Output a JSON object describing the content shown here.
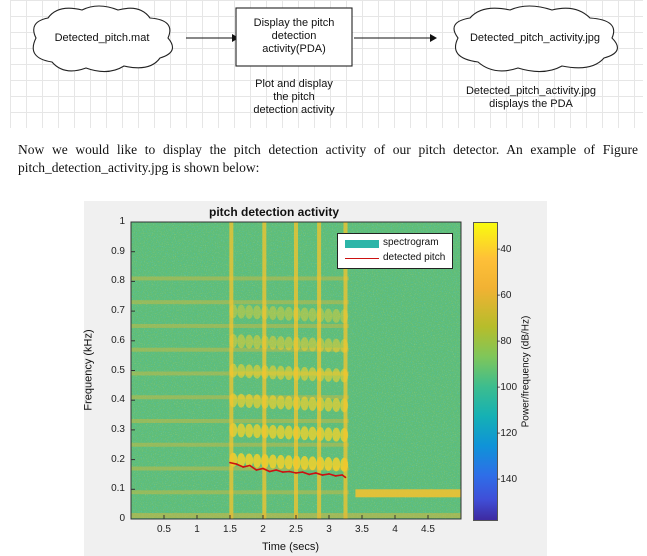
{
  "flowchart": {
    "input_cloud": "Detected_pitch.mat",
    "process_box": [
      "Display the pitch",
      "detection",
      "activity(PDA)"
    ],
    "process_caption": [
      "Plot and display",
      "the pitch",
      "detection activity"
    ],
    "output_cloud": "Detected_pitch_activity.jpg",
    "output_caption": [
      "Detected_pitch_activity.jpg",
      "displays the PDA"
    ]
  },
  "paragraph": "Now we would like to display the pitch detection activity of our pitch detector. An example of Figure pitch_detection_activity.jpg is shown below:",
  "chart_data": {
    "type": "heatmap",
    "title": "pitch detection activity",
    "xlabel": "Time (secs)",
    "ylabel": "Frequency (kHz)",
    "xlim": [
      0,
      5
    ],
    "ylim": [
      0,
      1
    ],
    "xticks": [
      0.5,
      1,
      1.5,
      2,
      2.5,
      3,
      3.5,
      4,
      4.5
    ],
    "yticks": [
      0,
      0.1,
      0.2,
      0.3,
      0.4,
      0.5,
      0.6,
      0.7,
      0.8,
      0.9,
      1
    ],
    "legend": {
      "placement": "top-right",
      "entries": [
        "spectrogram",
        "detected pitch"
      ]
    },
    "colorbar": {
      "label": "Power/frequency (dB/Hz)",
      "ticks": [
        -40,
        -60,
        -80,
        -100,
        -120,
        -140
      ],
      "range": [
        -157,
        -28
      ]
    },
    "series": [
      {
        "name": "detected pitch",
        "x": [
          1.5,
          1.6,
          1.7,
          1.8,
          1.9,
          2.0,
          2.1,
          2.2,
          2.3,
          2.4,
          2.5,
          2.6,
          2.7,
          2.8,
          2.9,
          3.0,
          3.1,
          3.2,
          3.25
        ],
        "y": [
          0.19,
          0.185,
          0.175,
          0.18,
          0.165,
          0.17,
          0.16,
          0.165,
          0.158,
          0.16,
          0.155,
          0.158,
          0.15,
          0.155,
          0.148,
          0.152,
          0.145,
          0.148,
          0.14
        ]
      }
    ]
  },
  "colors": {
    "spectrogram_swatch": "#2cb5a8",
    "pitch_line": "#cc1111"
  }
}
